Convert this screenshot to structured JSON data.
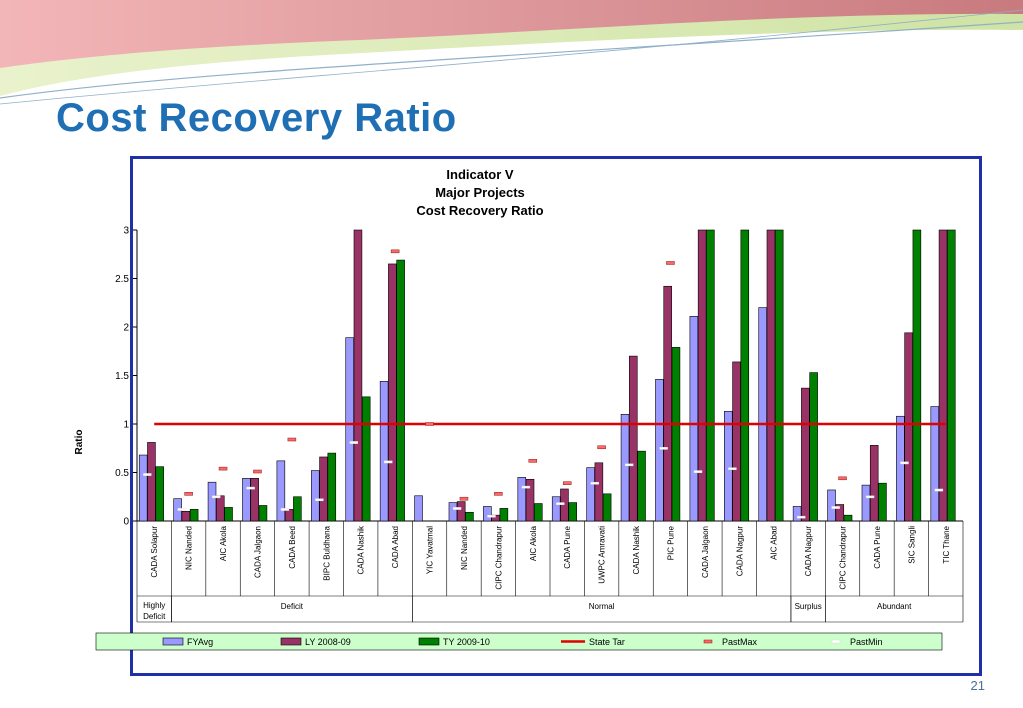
{
  "slide": {
    "title": "Cost Recovery Ratio",
    "page_number": "21"
  },
  "colors": {
    "fyavg": "#9999ff",
    "ly": "#993366",
    "ty": "#008000",
    "state_target": "#e00000",
    "past_max": "#ff6666",
    "title": "#1f6fb4",
    "frame": "#1f2fa8"
  },
  "chart_data": {
    "type": "bar",
    "title_lines": [
      "Indicator V",
      "Major Projects",
      "Cost Recovery Ratio"
    ],
    "ylabel": "Ratio",
    "xlabel": "",
    "ylim": [
      0,
      3
    ],
    "yticks": [
      "0",
      "0.5",
      "1",
      "1.5",
      "2",
      "2.5",
      "3"
    ],
    "grid": false,
    "legend_position": "bottom",
    "categories": [
      "CADA Solapur",
      "NIC Nanded",
      "AIC Akola",
      "CADA Jalgaon",
      "CADA Beed",
      "BIPC Buldhana",
      "CADA Nashik",
      "CADA Abad",
      "YIC Yavatmal",
      "NIC Nanded",
      "CIPC Chandrapur",
      "AIC Akola",
      "CADA Pune",
      "UWPC Amravati",
      "CADA Nashik",
      "PIC Pune",
      "CADA Jalgaon",
      "CADA Nagpur",
      "AIC Abad",
      "CADA Nagpur",
      "CIPC Chandrapur",
      "CADA Pune",
      "SIC Sangli",
      "TIC Thane"
    ],
    "groups": [
      {
        "label": "Highly Deficit",
        "lines": [
          "Highly",
          "Deficit"
        ],
        "start": 0,
        "end": 0
      },
      {
        "label": "Deficit",
        "lines": [
          "Deficit"
        ],
        "start": 1,
        "end": 7
      },
      {
        "label": "Normal",
        "lines": [
          "Normal"
        ],
        "start": 8,
        "end": 18
      },
      {
        "label": "Surplus",
        "lines": [
          "Surplus"
        ],
        "start": 19,
        "end": 19
      },
      {
        "label": "Abundant",
        "lines": [
          "Abundant"
        ],
        "start": 20,
        "end": 23
      }
    ],
    "series": [
      {
        "name": "FYAvg",
        "values": [
          0.68,
          0.23,
          0.4,
          0.44,
          0.62,
          0.52,
          1.89,
          1.44,
          0.26,
          0.19,
          0.15,
          0.45,
          0.25,
          0.55,
          1.1,
          1.46,
          2.11,
          1.13,
          2.2,
          0.15,
          0.32,
          0.37,
          1.08,
          1.18
        ]
      },
      {
        "name": "LY 2008-09",
        "values": [
          0.81,
          0.1,
          0.26,
          0.44,
          0.12,
          0.66,
          3.0,
          2.65,
          0,
          0.2,
          0.06,
          0.43,
          0.33,
          0.6,
          1.7,
          2.42,
          3.0,
          1.64,
          3.0,
          1.37,
          0.17,
          0.78,
          1.94,
          3.0
        ]
      },
      {
        "name": "TY 2009-10",
        "values": [
          0.56,
          0.12,
          0.14,
          0.16,
          0.25,
          0.7,
          1.28,
          2.69,
          0,
          0.09,
          0.13,
          0.18,
          0.19,
          0.28,
          0.72,
          1.79,
          3.0,
          3.0,
          3.0,
          1.53,
          0.06,
          0.39,
          3.0,
          3.0
        ]
      },
      {
        "name": "State Tar",
        "value": 1.0
      },
      {
        "name": "PastMax",
        "values": [
          null,
          0.28,
          0.54,
          0.51,
          0.84,
          null,
          null,
          2.78,
          1.0,
          0.23,
          0.28,
          0.62,
          0.39,
          0.76,
          null,
          2.66,
          null,
          null,
          null,
          null,
          0.44,
          null,
          null,
          null
        ]
      },
      {
        "name": "PastMin",
        "values": [
          0.48,
          0.12,
          0.25,
          0.34,
          0.12,
          0.22,
          0.81,
          0.61,
          null,
          0.13,
          0.05,
          0.35,
          0.18,
          0.39,
          0.58,
          0.75,
          0.51,
          0.54,
          null,
          0.04,
          0.14,
          0.25,
          0.6,
          0.32
        ]
      }
    ]
  }
}
